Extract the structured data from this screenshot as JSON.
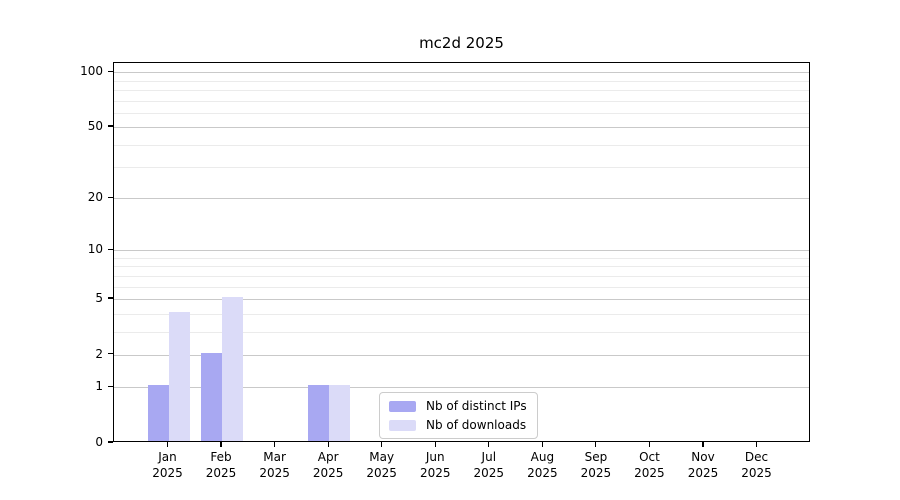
{
  "chart_data": {
    "type": "bar",
    "title": "mc2d 2025",
    "categories": [
      "Jan",
      "Feb",
      "Mar",
      "Apr",
      "May",
      "Jun",
      "Jul",
      "Aug",
      "Sep",
      "Oct",
      "Nov",
      "Dec"
    ],
    "category_year": "2025",
    "series": [
      {
        "name": "Nb of distinct IPs",
        "color": "#a8a8f2",
        "values": [
          1,
          2,
          0,
          1,
          0,
          0,
          0,
          0,
          0,
          0,
          0,
          0
        ]
      },
      {
        "name": "Nb of downloads",
        "color": "#dbdbf8",
        "values": [
          4,
          5,
          0,
          1,
          0,
          0,
          0,
          0,
          0,
          0,
          0,
          0
        ]
      }
    ],
    "xlabel": "",
    "ylabel": "",
    "y_scale": "log10(1+v)",
    "ylim": [
      0,
      113
    ],
    "y_major_ticks": [
      0,
      1,
      2,
      5,
      10,
      20,
      50,
      100
    ],
    "y_minor_gridlines": [
      3,
      4,
      6,
      7,
      8,
      9,
      30,
      40,
      60,
      70,
      80,
      90
    ],
    "grid": "on",
    "legend_position": "lower-center-inside"
  },
  "legend": {
    "items": [
      {
        "label": "Nb of distinct IPs"
      },
      {
        "label": "Nb of downloads"
      }
    ]
  }
}
